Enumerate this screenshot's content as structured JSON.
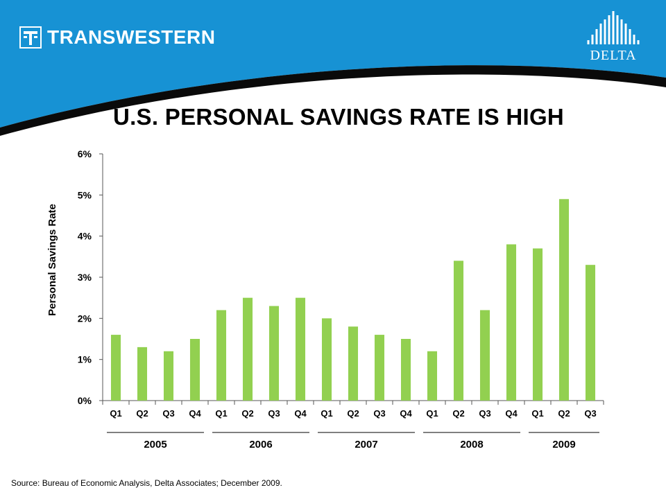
{
  "header": {
    "brand_name": "TRANSWESTERN",
    "partner_name": "DELTA",
    "colors": {
      "blue": "#1792d4",
      "dark": "#0a0a0a",
      "bar": "#92d050"
    }
  },
  "footer": {
    "source": "Source: Bureau  of Economic Analysis, Delta Associates; December 2009."
  },
  "chart_data": {
    "type": "bar",
    "title": "U.S. PERSONAL SAVINGS RATE IS HIGH",
    "ylabel": "Personal Savings Rate",
    "xlabel": "",
    "ylim": [
      0,
      6
    ],
    "yticks": [
      "0%",
      "1%",
      "2%",
      "3%",
      "4%",
      "5%",
      "6%"
    ],
    "categories": [
      "Q1",
      "Q2",
      "Q3",
      "Q4",
      "Q1",
      "Q2",
      "Q3",
      "Q4",
      "Q1",
      "Q2",
      "Q3",
      "Q4",
      "Q1",
      "Q2",
      "Q3",
      "Q4",
      "Q1",
      "Q2",
      "Q3"
    ],
    "values": [
      1.6,
      1.3,
      1.2,
      1.5,
      2.2,
      2.5,
      2.3,
      2.5,
      2.0,
      1.8,
      1.6,
      1.5,
      1.2,
      3.4,
      2.2,
      3.8,
      3.7,
      4.9,
      3.3
    ],
    "groups": [
      {
        "label": "2005",
        "start": 0,
        "end": 3
      },
      {
        "label": "2006",
        "start": 4,
        "end": 7
      },
      {
        "label": "2007",
        "start": 8,
        "end": 11
      },
      {
        "label": "2008",
        "start": 12,
        "end": 15
      },
      {
        "label": "2009",
        "start": 16,
        "end": 18
      }
    ],
    "grid": false,
    "legend": "none"
  }
}
